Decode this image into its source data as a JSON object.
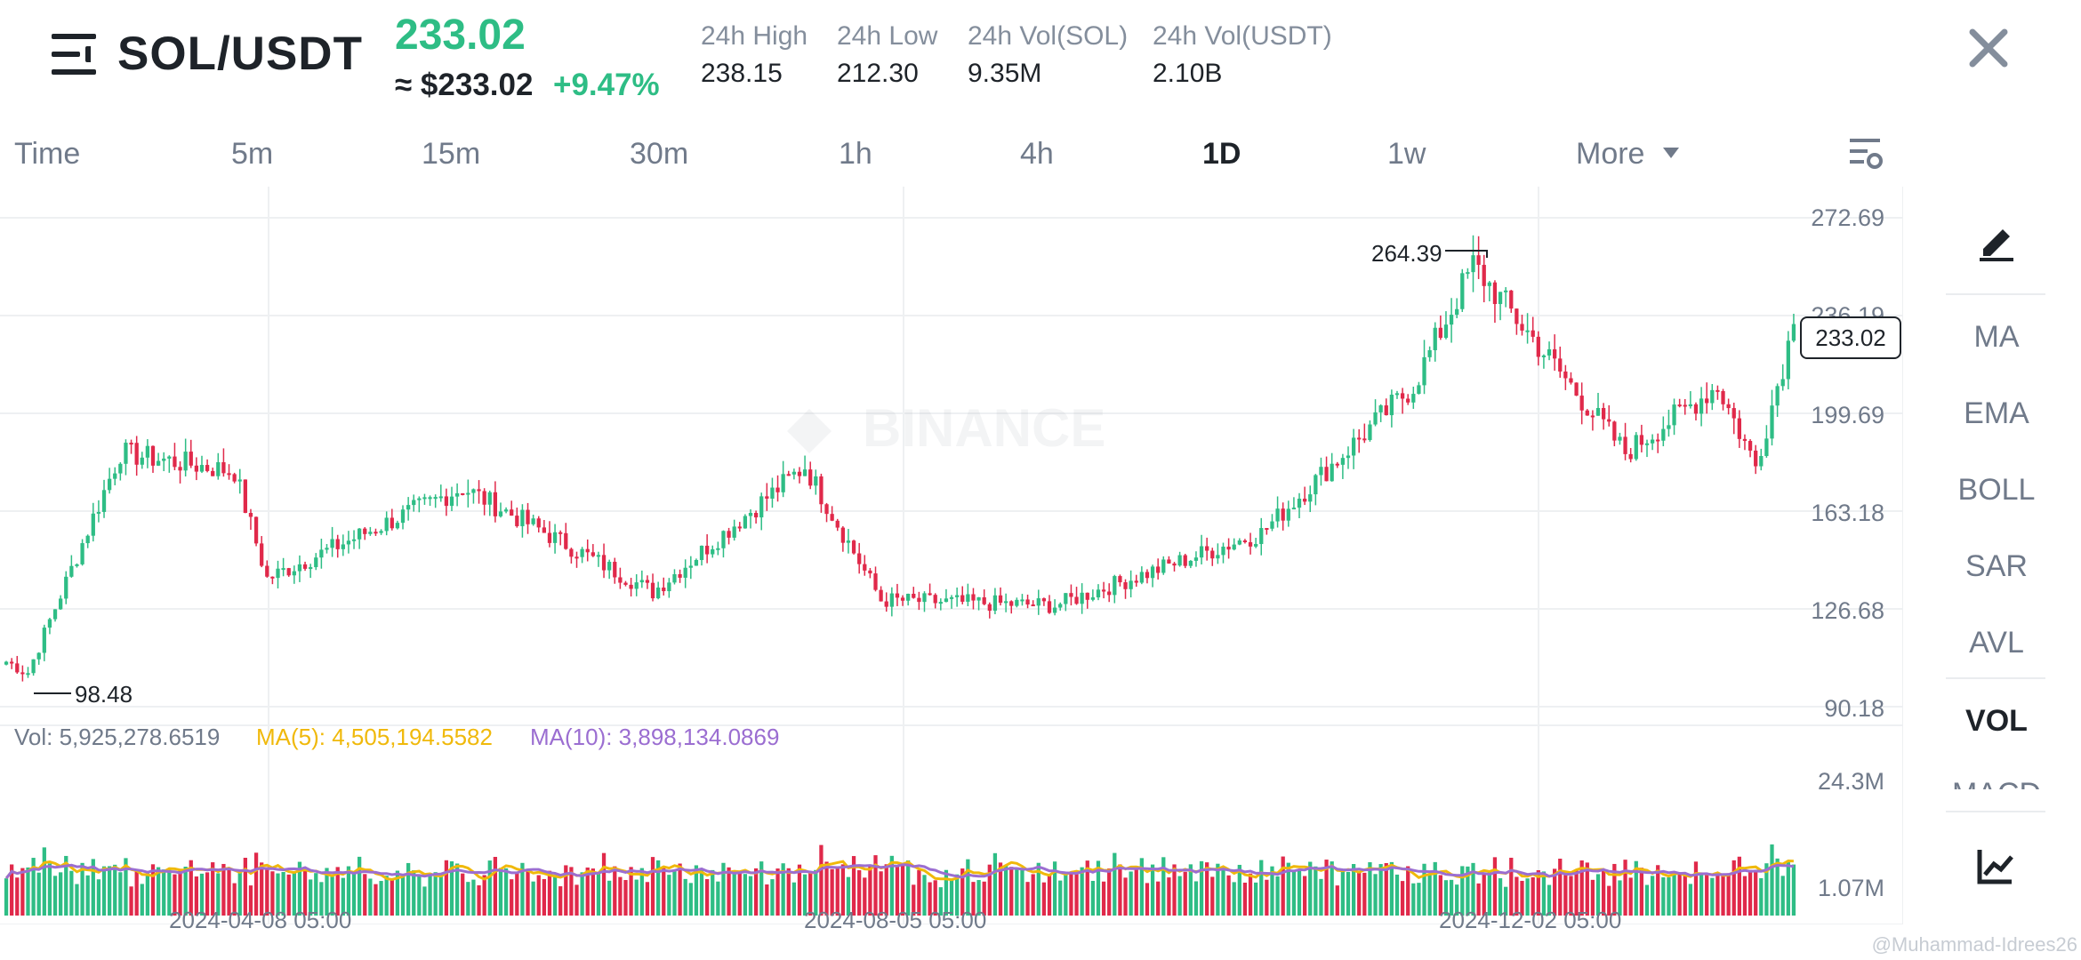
{
  "header": {
    "pair": "SOL/USDT",
    "last_price": "233.02",
    "usd_price": "≈ $233.02",
    "change_pct": "+9.47%",
    "stats": [
      {
        "label": "24h High",
        "value": "238.15"
      },
      {
        "label": "24h Low",
        "value": "212.30"
      },
      {
        "label": "24h Vol(SOL)",
        "value": "9.35M"
      },
      {
        "label": "24h Vol(USDT)",
        "value": "2.10B"
      }
    ],
    "close_icon": "close-icon",
    "menu_icon": "menu-icon"
  },
  "tabs": {
    "items": [
      "Time",
      "5m",
      "15m",
      "30m",
      "1h",
      "4h",
      "1D",
      "1w",
      "More"
    ],
    "active": "1D",
    "settings_icon": "chart-settings-icon"
  },
  "chart": {
    "watermark": "BINANCE",
    "y_ticks": [
      "272.69",
      "236.19",
      "199.69",
      "163.18",
      "126.68",
      "90.18"
    ],
    "high_label": "264.39",
    "low_label": "98.48",
    "current_label": "233.02",
    "volume_legend": {
      "vol": "Vol: 5,925,278.6519",
      "ma5": "MA(5): 4,505,194.5582",
      "ma10": "MA(10): 3,898,134.0869"
    },
    "vol_ticks": [
      "24.3M",
      "1.07M"
    ],
    "x_ticks": [
      "2024-04-08 05:00",
      "2024-08-05 05:00",
      "2024-12-02 05:00"
    ]
  },
  "sidebar": {
    "draw_icon": "draw-icon",
    "items": [
      "MA",
      "EMA",
      "BOLL",
      "SAR",
      "AVL",
      "VOL",
      "MACD"
    ],
    "active": "VOL",
    "indicator_icon": "indicator-icon"
  },
  "footer": {
    "watermark": "@Muhammad-Idrees26"
  },
  "colors": {
    "up": "#2ebd85",
    "down": "#e0294a",
    "ma5": "#f0b90b",
    "ma10": "#9b6ed1"
  },
  "chart_data": {
    "type": "candlestick",
    "x_range": [
      "2024-02-26",
      "2025-01-20"
    ],
    "ylim": [
      90.18,
      272.69
    ],
    "high": {
      "value": 264.39,
      "date": "2024-11-22"
    },
    "low": {
      "value": 98.48,
      "date": "2024-03-01"
    },
    "last_close": 233.02,
    "approx_close_path": [
      {
        "date": "2024-02-26",
        "close": 107
      },
      {
        "date": "2024-03-01",
        "close": 103
      },
      {
        "date": "2024-03-18",
        "close": 185
      },
      {
        "date": "2024-04-08",
        "close": 178
      },
      {
        "date": "2024-04-14",
        "close": 138
      },
      {
        "date": "2024-05-20",
        "close": 172
      },
      {
        "date": "2024-06-24",
        "close": 133
      },
      {
        "date": "2024-07-22",
        "close": 180
      },
      {
        "date": "2024-08-05",
        "close": 130
      },
      {
        "date": "2024-09-06",
        "close": 128
      },
      {
        "date": "2024-10-14",
        "close": 155
      },
      {
        "date": "2024-11-11",
        "close": 210
      },
      {
        "date": "2024-11-22",
        "close": 255
      },
      {
        "date": "2024-12-20",
        "close": 185
      },
      {
        "date": "2025-01-06",
        "close": 210
      },
      {
        "date": "2025-01-13",
        "close": 180
      },
      {
        "date": "2025-01-20",
        "close": 233.02
      }
    ],
    "volume": {
      "ylim": [
        1.07,
        24.3
      ],
      "unit": "M",
      "last": 5925278.6519,
      "ma5_last": 4505194.5582,
      "ma10_last": 3898134.0869
    }
  }
}
